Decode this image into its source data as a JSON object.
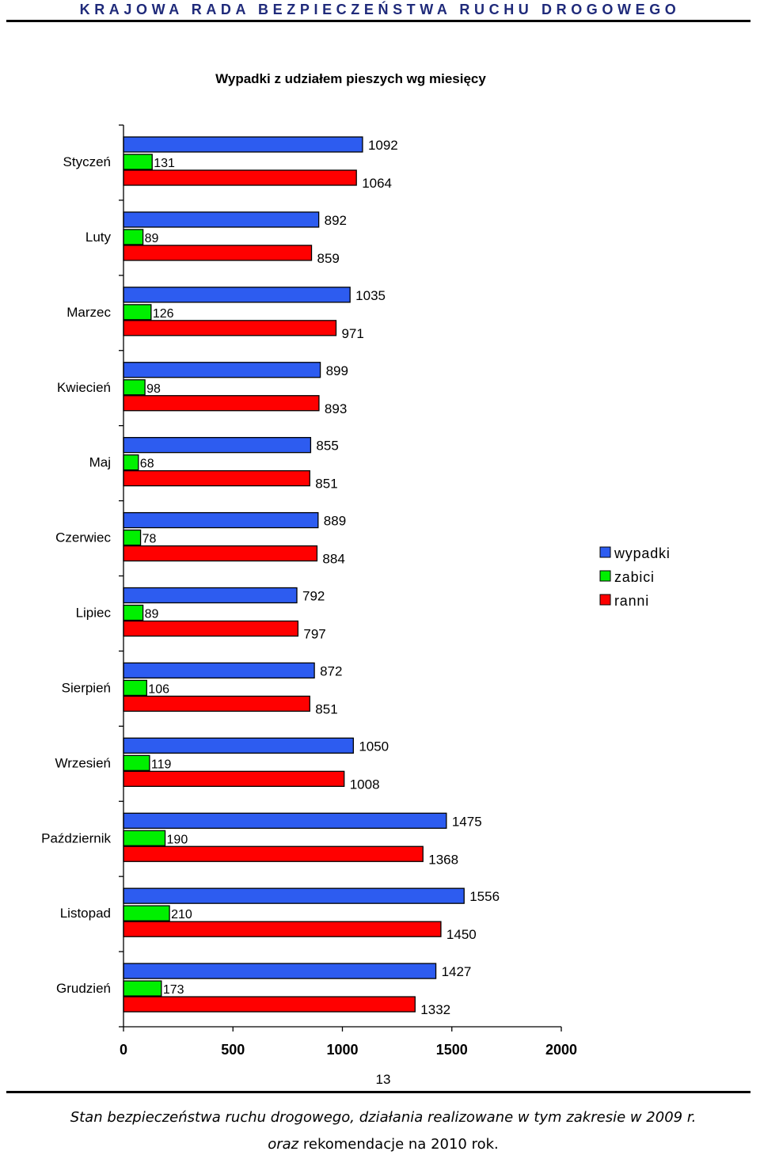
{
  "header": {
    "organization": "KRAJOWA RADA BEZPIECZEŃSTWA RUCHU DROGOWEGO"
  },
  "chart_data": {
    "type": "bar",
    "orientation": "horizontal",
    "title": "Wypadki z udziałem pieszych wg miesięcy",
    "categories": [
      "Styczeń",
      "Luty",
      "Marzec",
      "Kwiecień",
      "Maj",
      "Czerwiec",
      "Lipiec",
      "Sierpień",
      "Wrzesień",
      "Październik",
      "Listopad",
      "Grudzień"
    ],
    "series": [
      {
        "name": "wypadki",
        "color": "#2d5cf0",
        "values": [
          1092,
          892,
          1035,
          899,
          855,
          889,
          792,
          872,
          1050,
          1475,
          1556,
          1427
        ]
      },
      {
        "name": "zabici",
        "color": "#00f000",
        "values": [
          131,
          89,
          126,
          98,
          68,
          78,
          89,
          106,
          119,
          190,
          210,
          173
        ]
      },
      {
        "name": "ranni",
        "color": "#ff0000",
        "values": [
          1064,
          859,
          971,
          893,
          851,
          884,
          797,
          851,
          1008,
          1368,
          1450,
          1332
        ]
      }
    ],
    "xlim": [
      0,
      2000
    ],
    "xticks": [
      0,
      500,
      1000,
      1500,
      2000
    ],
    "legend_position": "right",
    "grid": false
  },
  "footer": {
    "page_number": "13",
    "line1": "Stan bezpieczeństwa ruchu drogowego, działania realizowane w tym zakresie w 2009 r.",
    "line2_prefix": "oraz",
    "line2_rest": " rekomendacje na 2010 rok."
  }
}
